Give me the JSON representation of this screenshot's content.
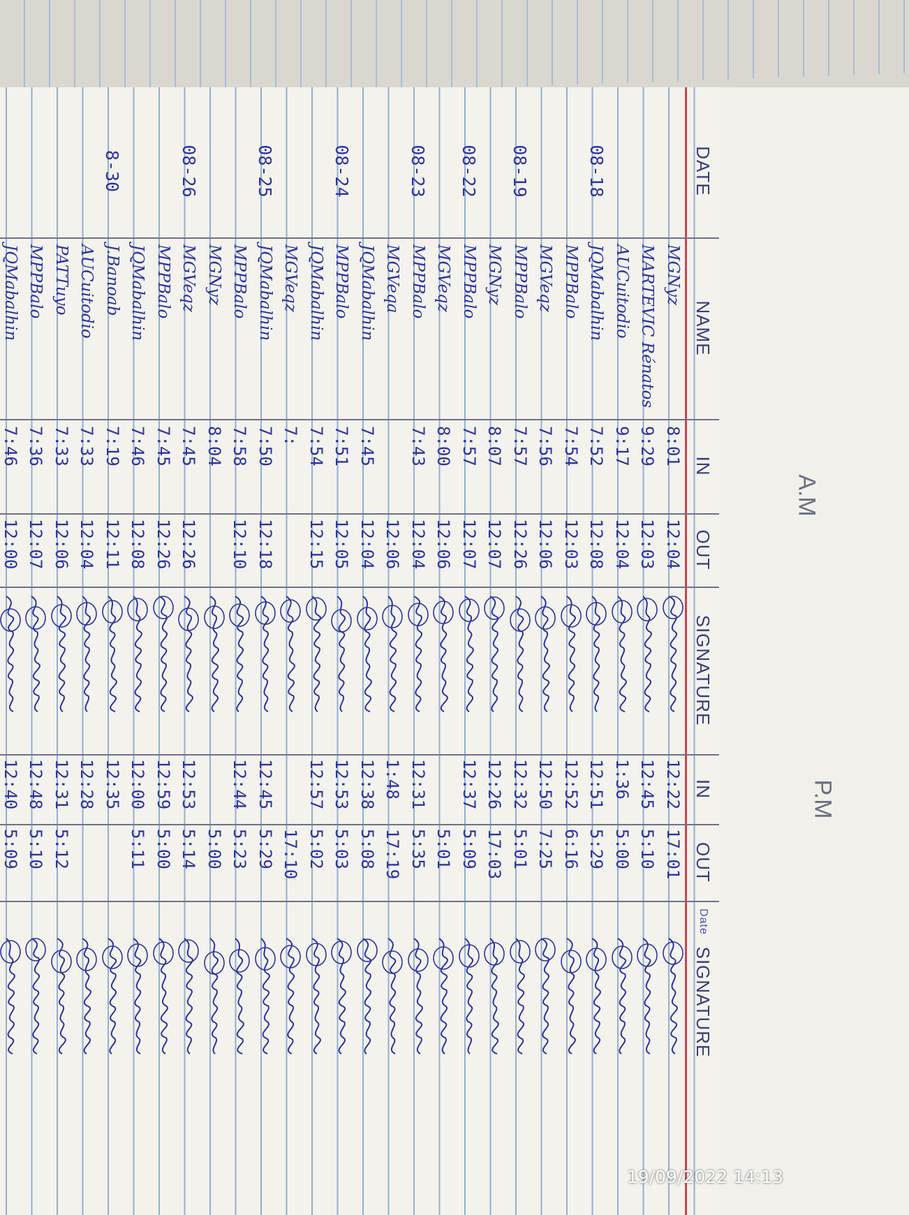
{
  "header": {
    "session_am": "A.M",
    "session_pm": "P.M",
    "columns": [
      "DATE",
      "NAME",
      "IN",
      "OUT",
      "SIGNATURE",
      "IN",
      "OUT",
      "SIGNATURE"
    ],
    "sig2_prefix": "Date"
  },
  "rows": [
    {
      "date": "",
      "name": "MGNyz",
      "am_in": "8:01",
      "am_out": "12:04",
      "pm_in": "12:22",
      "pm_out": "17:01"
    },
    {
      "date": "",
      "name": "MARTEVIC Rénatos",
      "am_in": "9:29",
      "am_out": "12:03",
      "pm_in": "12:45",
      "pm_out": "5:10"
    },
    {
      "date": "",
      "name": "AUCuitodio",
      "am_in": "9:17",
      "am_out": "12:04",
      "pm_in": "1:36",
      "pm_out": "5:00"
    },
    {
      "date": "08-18",
      "name": "JQMabalhin",
      "am_in": "7:52",
      "am_out": "12:08",
      "pm_in": "12:51",
      "pm_out": "5:29"
    },
    {
      "date": "",
      "name": "MPPBalo",
      "am_in": "7:54",
      "am_out": "12:03",
      "pm_in": "12:52",
      "pm_out": "6:16"
    },
    {
      "date": "",
      "name": "MGVeqz",
      "am_in": "7:56",
      "am_out": "12:06",
      "pm_in": "12:50",
      "pm_out": "7:25"
    },
    {
      "date": "08-19",
      "name": "MPPBalo",
      "am_in": "7:57",
      "am_out": "12:26",
      "pm_in": "12:32",
      "pm_out": "5:01"
    },
    {
      "date": "",
      "name": "MGNyz",
      "am_in": "8:07",
      "am_out": "12:07",
      "pm_in": "12:26",
      "pm_out": "17:03"
    },
    {
      "date": "08-22",
      "name": "MPPBalo",
      "am_in": "7:57",
      "am_out": "12:07",
      "pm_in": "12:37",
      "pm_out": "5:09"
    },
    {
      "date": "",
      "name": "MGVeqz",
      "am_in": "8:00",
      "am_out": "12:06",
      "pm_in": "",
      "pm_out": "5:01"
    },
    {
      "date": "08-23",
      "name": "MPPBalo",
      "am_in": "7:43",
      "am_out": "12:04",
      "pm_in": "12:31",
      "pm_out": "5:35"
    },
    {
      "date": "",
      "name": "MGVeqa",
      "am_in": "",
      "am_out": "12:06",
      "pm_in": "1:48",
      "pm_out": "17:19"
    },
    {
      "date": "",
      "name": "JQMabalhin",
      "am_in": "7:45",
      "am_out": "12:04",
      "pm_in": "12:38",
      "pm_out": "5:08"
    },
    {
      "date": "08-24",
      "name": "MPPBalo",
      "am_in": "7:51",
      "am_out": "12:05",
      "pm_in": "12:53",
      "pm_out": "5:03"
    },
    {
      "date": "",
      "name": "JQMabalhin",
      "am_in": "7:54",
      "am_out": "12:15",
      "pm_in": "12:57",
      "pm_out": "5:02"
    },
    {
      "date": "",
      "name": "MGVeqz",
      "am_in": "7:",
      "am_out": "",
      "pm_in": "",
      "pm_out": "17:10"
    },
    {
      "date": "08-25",
      "name": "JQMabalhin",
      "am_in": "7:50",
      "am_out": "12:18",
      "pm_in": "12:45",
      "pm_out": "5:29"
    },
    {
      "date": "",
      "name": "MPPBalo",
      "am_in": "7:58",
      "am_out": "12:10",
      "pm_in": "12:44",
      "pm_out": "5:23"
    },
    {
      "date": "",
      "name": "MGNyz",
      "am_in": "8:04",
      "am_out": "",
      "pm_in": "",
      "pm_out": "5:00"
    },
    {
      "date": "08-26",
      "name": "MGVeqz",
      "am_in": "7:45",
      "am_out": "12:26",
      "pm_in": "12:53",
      "pm_out": "5:14"
    },
    {
      "date": "",
      "name": "MPPBalo",
      "am_in": "7:45",
      "am_out": "12:26",
      "pm_in": "12:59",
      "pm_out": "5:00"
    },
    {
      "date": "",
      "name": "JQMabalhin",
      "am_in": "7:46",
      "am_out": "12:08",
      "pm_in": "12:00",
      "pm_out": "5:11"
    },
    {
      "date": "8-30",
      "name": "J.Banoab",
      "am_in": "7:19",
      "am_out": "12:11",
      "pm_in": "12:35",
      "pm_out": ""
    },
    {
      "date": "",
      "name": "AUCuitodio",
      "am_in": "7:33",
      "am_out": "12:04",
      "pm_in": "12:28",
      "pm_out": ""
    },
    {
      "date": "",
      "name": "PATTuyo",
      "am_in": "7:33",
      "am_out": "12:06",
      "pm_in": "12:31",
      "pm_out": "5:12"
    },
    {
      "date": "",
      "name": "MPPBalo",
      "am_in": "7:36",
      "am_out": "12:07",
      "pm_in": "12:48",
      "pm_out": "5:10"
    },
    {
      "date": "",
      "name": "JQMabalhin",
      "am_in": "7:46",
      "am_out": "12:00",
      "pm_in": "12:40",
      "pm_out": "5:09"
    }
  ],
  "photo_timestamp": "19/09/2022 14:13",
  "colors": {
    "ink": "#2d33a0",
    "ruling": "#94afd0",
    "margin": "#c9454f",
    "paper": "#f3f2ec"
  }
}
